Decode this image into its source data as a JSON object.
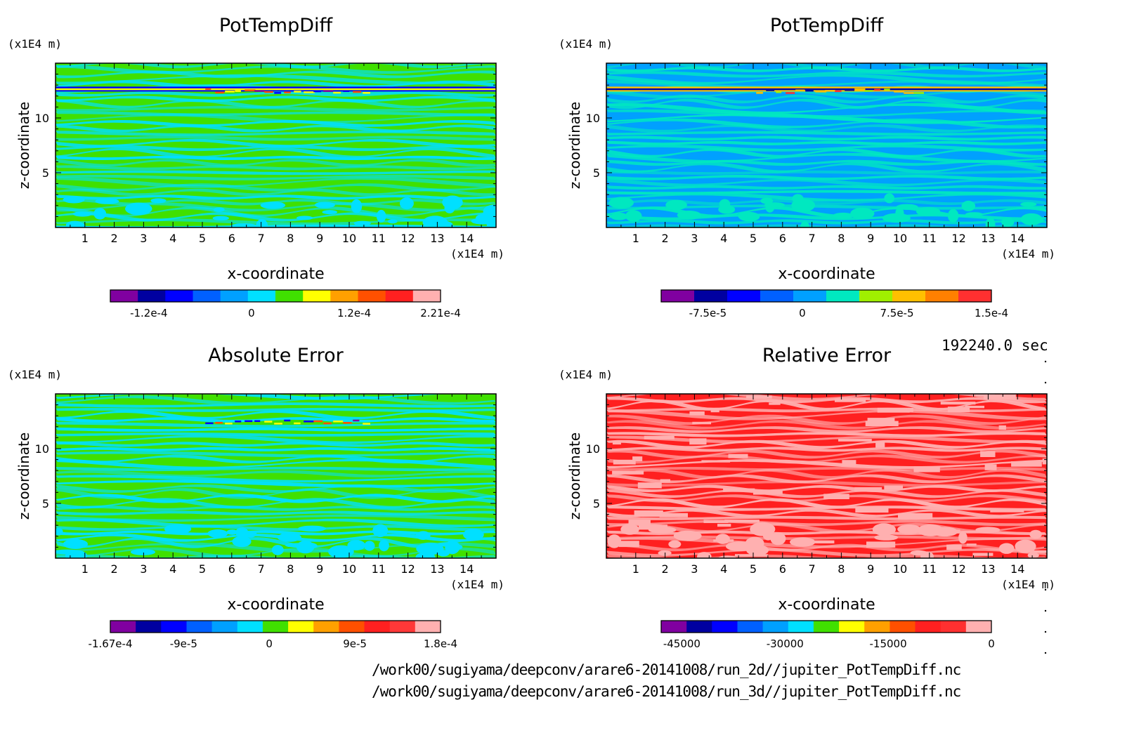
{
  "time_label": "192240.0 sec",
  "files": [
    "/work00/sugiyama/deepconv/arare6-20141008/run_2d//jupiter_PotTempDiff.nc",
    "/work00/sugiyama/deepconv/arare6-20141008/run_3d//jupiter_PotTempDiff.nc"
  ],
  "chart_data": [
    {
      "type": "heatmap",
      "title": "PotTempDiff",
      "xlabel": "x-coordinate",
      "ylabel": "z-coordinate",
      "x_unit": "(x1E4 m)",
      "y_unit": "(x1E4 m)",
      "x_ticks": [
        "1",
        "2",
        "3",
        "4",
        "5",
        "6",
        "7",
        "8",
        "9",
        "10",
        "11",
        "12",
        "13",
        "14"
      ],
      "y_ticks": [
        "5",
        "10"
      ],
      "xlim": [
        0,
        15
      ],
      "ylim": [
        0,
        15
      ],
      "colorbar": {
        "range": [
          -0.000165,
          0.000221
        ],
        "tick_labels": [
          "-1.2e-4",
          "0",
          "1.2e-4",
          "2.21e-4"
        ],
        "tick_values": [
          -0.00012,
          0,
          0.00012,
          0.000221
        ],
        "colors": [
          "#8000a0",
          "#0000a0",
          "#0000ff",
          "#0060ff",
          "#00a0ff",
          "#00e0ff",
          "#40e000",
          "#ffff00",
          "#ffa000",
          "#ff5000",
          "#ff2020",
          "#ffb0b0"
        ]
      },
      "field_colors": [
        "#40e000",
        "#00e0ff"
      ],
      "highlight_colors": [
        "#ffff00",
        "#0000ff",
        "#ff5000",
        "#8000a0"
      ]
    },
    {
      "type": "heatmap",
      "title": "PotTempDiff",
      "xlabel": "x-coordinate",
      "ylabel": "z-coordinate",
      "x_unit": "(x1E4 m)",
      "y_unit": "(x1E4 m)",
      "x_ticks": [
        "1",
        "2",
        "3",
        "4",
        "5",
        "6",
        "7",
        "8",
        "9",
        "10",
        "11",
        "12",
        "13",
        "14"
      ],
      "y_ticks": [
        "5",
        "10"
      ],
      "xlim": [
        0,
        15
      ],
      "ylim": [
        0,
        15
      ],
      "colorbar": {
        "range": [
          -0.000112,
          0.00015
        ],
        "tick_labels": [
          "-7.5e-5",
          "0",
          "7.5e-5",
          "1.5e-4"
        ],
        "tick_values": [
          -7.5e-05,
          0,
          7.5e-05,
          0.00015
        ],
        "colors": [
          "#8000a0",
          "#0000a0",
          "#0000ff",
          "#0060ff",
          "#00a0ff",
          "#00e8c0",
          "#a0f000",
          "#ffc000",
          "#ff8000",
          "#ff3030"
        ]
      },
      "field_colors": [
        "#00a0ff",
        "#00e8c0"
      ],
      "highlight_colors": [
        "#0000a0",
        "#ffc000",
        "#a0f000",
        "#ff3030"
      ]
    },
    {
      "type": "heatmap",
      "title": "Absolute Error",
      "xlabel": "x-coordinate",
      "ylabel": "z-coordinate",
      "x_unit": "(x1E4 m)",
      "y_unit": "(x1E4 m)",
      "x_ticks": [
        "1",
        "2",
        "3",
        "4",
        "5",
        "6",
        "7",
        "8",
        "9",
        "10",
        "11",
        "12",
        "13",
        "14"
      ],
      "y_ticks": [
        "5",
        "10"
      ],
      "xlim": [
        0,
        15
      ],
      "ylim": [
        0,
        15
      ],
      "colorbar": {
        "range": [
          -0.000167,
          0.00018
        ],
        "tick_labels": [
          "-1.67e-4",
          "-9e-5",
          "0",
          "9e-5",
          "1.8e-4"
        ],
        "tick_values": [
          -0.000167,
          -9e-05,
          0,
          9e-05,
          0.00018
        ],
        "colors": [
          "#8000a0",
          "#0000a0",
          "#0000ff",
          "#0060ff",
          "#00a0ff",
          "#00e0ff",
          "#40e000",
          "#ffff00",
          "#ffa000",
          "#ff5000",
          "#ff2020",
          "#ff3838",
          "#ffb0b0"
        ]
      },
      "field_colors": [
        "#40e000",
        "#00e0ff"
      ],
      "highlight_colors": [
        "#ffff00",
        "#0000ff",
        "#ff5000",
        "#8000a0"
      ]
    },
    {
      "type": "heatmap",
      "title": "Relative Error",
      "xlabel": "x-coordinate",
      "ylabel": "z-coordinate",
      "x_unit": "(x1E4 m)",
      "y_unit": "(x1E4 m)",
      "x_ticks": [
        "1",
        "2",
        "3",
        "4",
        "5",
        "6",
        "7",
        "8",
        "9",
        "10",
        "11",
        "12",
        "13",
        "14"
      ],
      "y_ticks": [
        "5",
        "10"
      ],
      "xlim": [
        0,
        15
      ],
      "ylim": [
        0,
        15
      ],
      "colorbar": {
        "range": [
          -48000,
          0
        ],
        "tick_labels": [
          "-45000",
          "-30000",
          "-15000",
          "0"
        ],
        "tick_values": [
          -45000,
          -30000,
          -15000,
          0
        ],
        "colors": [
          "#8000a0",
          "#0000a0",
          "#0000ff",
          "#0060ff",
          "#00a0ff",
          "#00e0ff",
          "#40e000",
          "#ffff00",
          "#ffa000",
          "#ff5000",
          "#ff2020",
          "#ff3030",
          "#ffb0b0"
        ]
      },
      "field_colors": [
        "#ff2020",
        "#ffb0b0"
      ],
      "highlight_colors": [
        "#ffb0b0",
        "#ff2020"
      ]
    }
  ]
}
